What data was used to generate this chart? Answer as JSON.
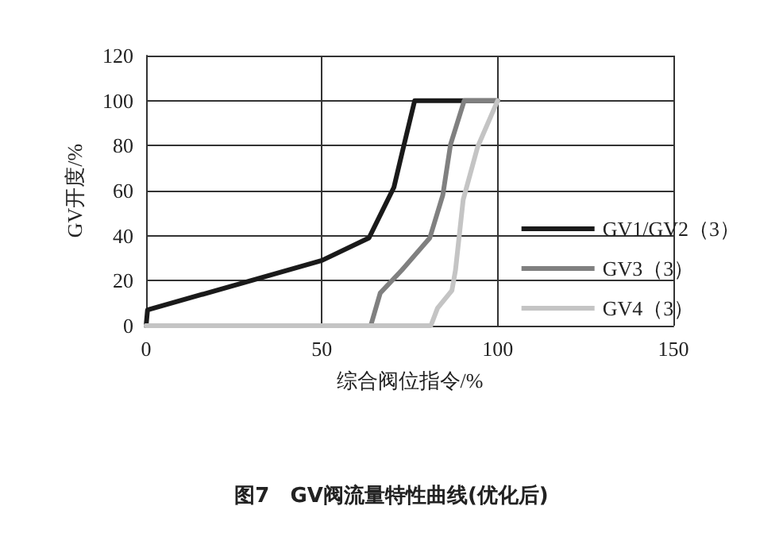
{
  "chart_data": {
    "type": "line",
    "title": "图7　GV阀流量特性曲线(优化后)",
    "xlabel": "综合阀位指令/%",
    "ylabel": "GV开度/%",
    "xlim": [
      0,
      150
    ],
    "xticks": [
      0,
      50,
      100,
      150
    ],
    "ylim": [
      0,
      120
    ],
    "yticks": [
      0,
      20,
      40,
      60,
      80,
      100,
      120
    ],
    "grid": true,
    "legend": "right",
    "marker": "none",
    "line_style": "solid",
    "series": [
      {
        "name": "GV1/GV2（3）",
        "color": "#1a1a1a",
        "x": [
          0,
          0.4,
          50,
          63.4,
          70.5,
          72.7,
          76.4,
          100
        ],
        "values": [
          0,
          7,
          29,
          39,
          61.5,
          76,
          100,
          100
        ]
      },
      {
        "name": "GV3（3）",
        "color": "#808080",
        "x": [
          0,
          63.9,
          66.6,
          72.7,
          80.7,
          84.4,
          86.6,
          90.5,
          100
        ],
        "values": [
          0,
          0,
          14.5,
          24.6,
          39,
          58,
          80.5,
          100,
          100
        ]
      },
      {
        "name": "GV4（3）",
        "color": "#c4c4c4",
        "x": [
          0,
          81,
          82.9,
          87,
          88,
          90.2,
          94.3,
          100
        ],
        "values": [
          0,
          0,
          7.8,
          15.7,
          24.6,
          56,
          79.4,
          100
        ]
      }
    ]
  }
}
